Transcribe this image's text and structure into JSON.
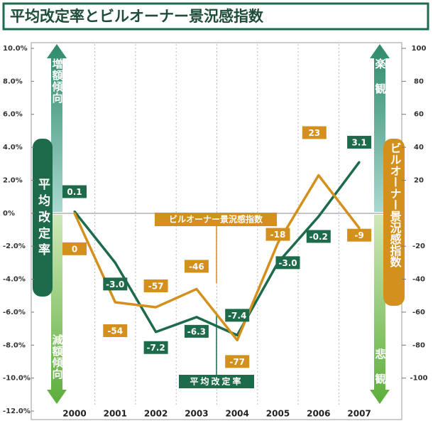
{
  "chart_data": {
    "type": "line",
    "title": "平均改定率とビルオーナー景況感指数",
    "categories": [
      "2000",
      "2001",
      "2002",
      "2003",
      "2004",
      "2005",
      "2006",
      "2007"
    ],
    "series": [
      {
        "name": "平均改定率",
        "color": "#1e6b4b",
        "axis": "y",
        "values": [
          0.1,
          -3.0,
          -7.2,
          -6.3,
          -7.4,
          -3.0,
          -0.2,
          3.1
        ],
        "value_labels": [
          "0.1",
          "-3.0",
          "-7.2",
          "-6.3",
          "-7.4",
          "-3.0",
          "-0.2",
          "3.1"
        ]
      },
      {
        "name": "ビルオーナー景況感指数",
        "color": "#d4901c",
        "axis": "y2",
        "values": [
          0,
          -54,
          -57,
          -46,
          -77,
          -18,
          23,
          -9
        ]
      }
    ],
    "ylim": [
      -12,
      10
    ],
    "yticks": [
      {
        "value": 10,
        "label": "10.0%"
      },
      {
        "value": 8,
        "label": "8.0%"
      },
      {
        "value": 6,
        "label": "6.0%"
      },
      {
        "value": 4,
        "label": "4.0%"
      },
      {
        "value": 2,
        "label": "2.0%"
      },
      {
        "value": 0,
        "label": "0%"
      },
      {
        "value": -2,
        "label": "-2.0%"
      },
      {
        "value": -4,
        "label": "-4.0%"
      },
      {
        "value": -6,
        "label": "-6.0%"
      },
      {
        "value": -8,
        "label": "-8.0%"
      },
      {
        "value": -10,
        "label": "-10.0%"
      },
      {
        "value": -12,
        "label": "-12.0%"
      }
    ],
    "y2lim": [
      -120,
      100
    ],
    "y2ticks": [
      100,
      80,
      60,
      40,
      20,
      -20,
      -40,
      -60,
      -80,
      -100
    ],
    "annotations": {
      "increase": "増額傾向",
      "decrease": "減額傾向",
      "optimistic": "楽観",
      "pessimistic": "悲観"
    }
  }
}
